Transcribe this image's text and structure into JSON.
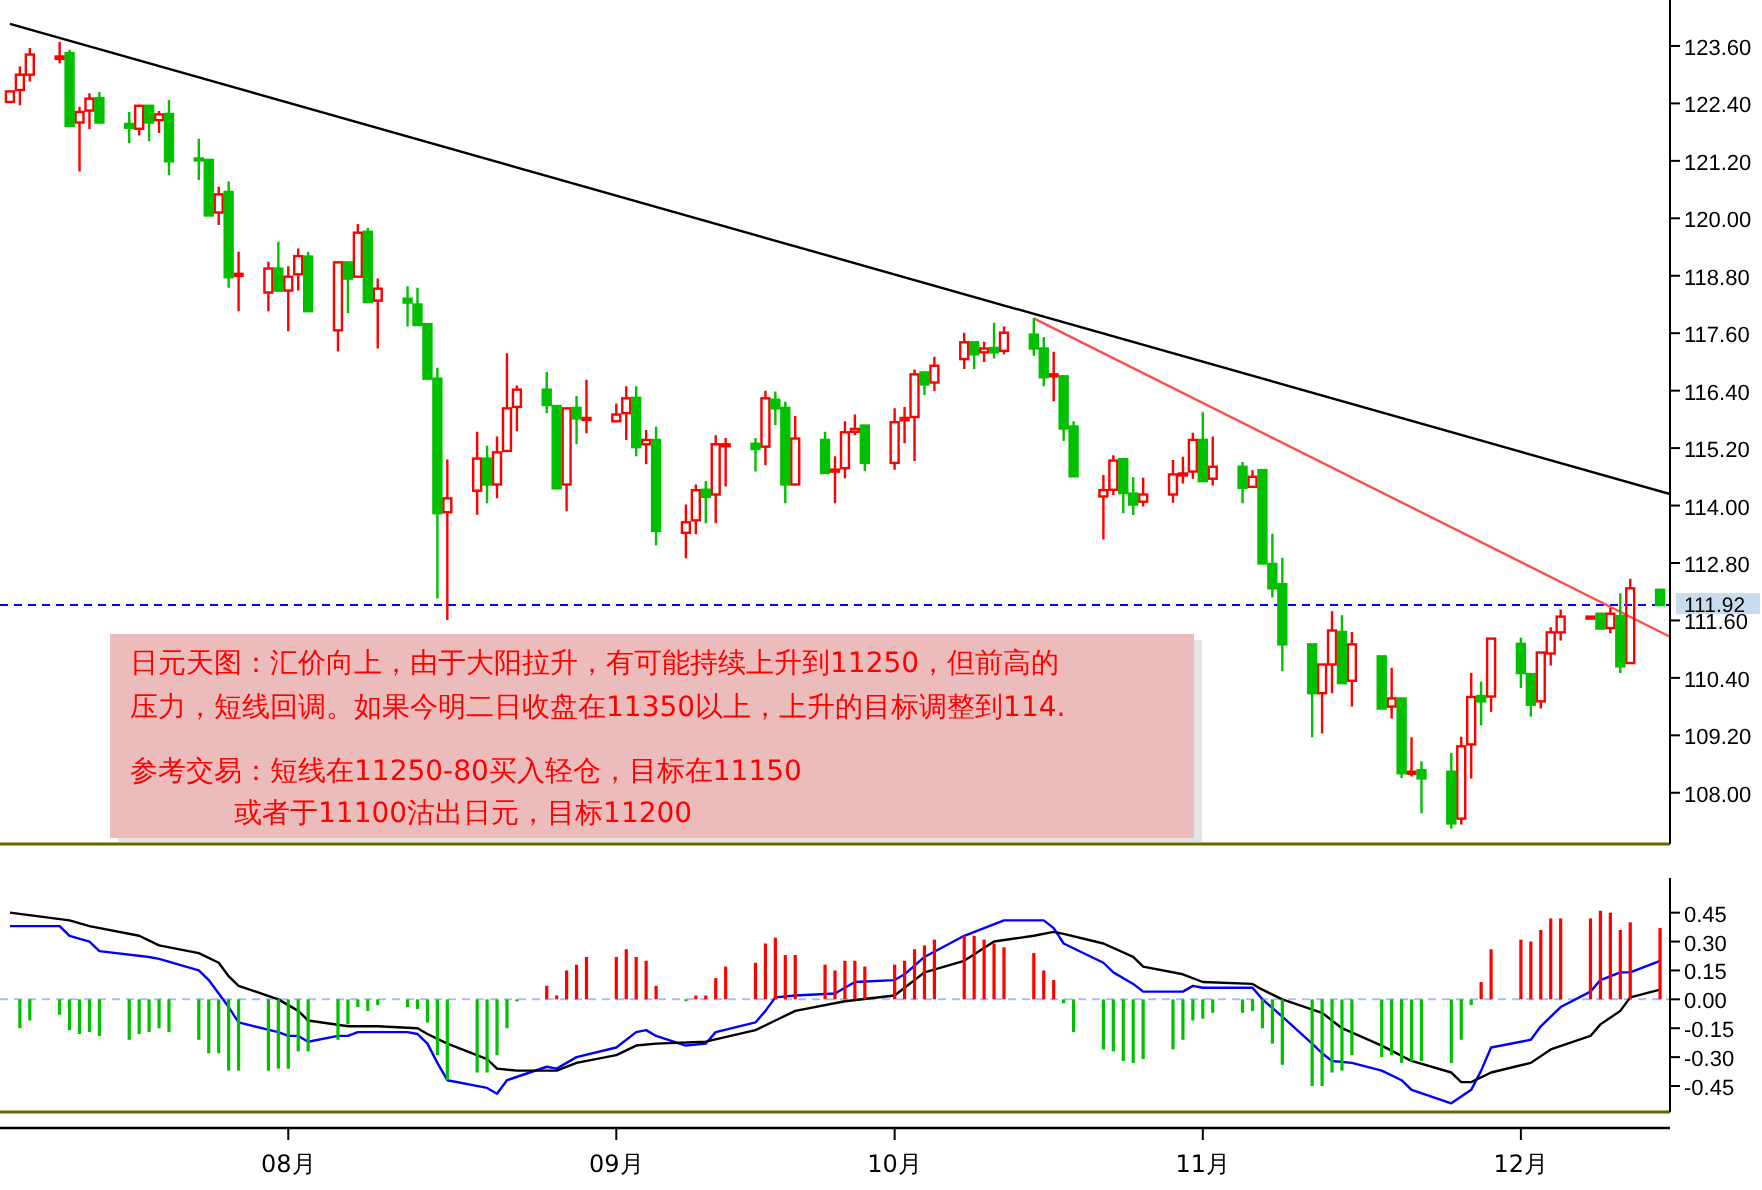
{
  "chart_data": [
    {
      "type": "candlestick",
      "xlim": [
        "--07-03",
        "--12-18"
      ],
      "ylim": [
        106.93,
        124.56
      ],
      "tick_labels": "y",
      "yticks": [
        {
          "value": 108.0,
          "label": "108.00"
        },
        {
          "value": 109.2,
          "label": "109.20"
        },
        {
          "value": 110.4,
          "label": "110.40"
        },
        {
          "value": 111.6,
          "label": "111.60"
        },
        {
          "value": 112.8,
          "label": "112.80"
        },
        {
          "value": 114.0,
          "label": "114.00"
        },
        {
          "value": 115.2,
          "label": "115.20"
        },
        {
          "value": 116.4,
          "label": "116.40"
        },
        {
          "value": 117.6,
          "label": "117.60"
        },
        {
          "value": 118.8,
          "label": "118.80"
        },
        {
          "value": 120.0,
          "label": "120.00"
        },
        {
          "value": 121.2,
          "label": "121.20"
        },
        {
          "value": 122.4,
          "label": "122.40"
        },
        {
          "value": 123.6,
          "label": "123.60"
        }
      ],
      "ref_lines": [
        {
          "axis": "y",
          "value": 111.92,
          "label": "111.92",
          "color": "#0000ff",
          "line_style": "dashed"
        }
      ],
      "annotations": [
        "日元天图：汇价向上，由于大阳拉升，有可能持续上升到11250，但前高的",
        "压力，短线回调。如果今明二日收盘在11350以上，上升的目标调整到114.",
        "参考交易：短线在11250-80买入轻仓，目标在11150",
        "或者于11100沽出日元，目标11200"
      ],
      "series": [
        {
          "color": "#ff0000",
          "x": [
            "--07-04",
            "--07-05",
            "--07-06",
            "--07-09",
            "--07-11",
            "--07-12",
            "--07-17",
            "--07-19",
            "--07-25",
            "--07-27",
            "--07-30",
            "--08-01",
            "--08-02",
            "--08-06",
            "--08-08",
            "--08-10",
            "--08-17",
            "--08-20",
            "--08-22",
            "--08-23",
            "--08-24",
            "--08-29",
            "--08-31",
            "--09-03",
            "--09-04",
            "--09-06",
            "--09-10",
            "--09-11",
            "--09-13",
            "--09-14",
            "--09-18",
            "--09-21",
            "--09-25",
            "--09-26",
            "--09-27",
            "--10-01",
            "--10-02",
            "--10-03",
            "--10-05",
            "--10-08",
            "--10-10",
            "--10-12",
            "--10-17",
            "--10-22",
            "--10-23",
            "--10-26",
            "--10-29",
            "--10-30",
            "--10-31",
            "--11-02",
            "--11-06",
            "--11-13",
            "--11-14",
            "--11-16",
            "--11-20",
            "--11-22",
            "--11-27",
            "--11-28",
            "--11-30",
            "--12-05",
            "--12-06",
            "--12-07",
            "--12-10",
            "--12-12",
            "--12-14"
          ],
          "ohlc": [
            [
              122.43,
              122.68,
              122.4,
              122.65
            ],
            [
              122.68,
              123.17,
              122.36,
              123.0
            ],
            [
              123.0,
              123.56,
              122.86,
              123.42
            ],
            [
              123.33,
              123.68,
              123.24,
              123.38
            ],
            [
              122.0,
              122.33,
              120.98,
              122.22
            ],
            [
              122.25,
              122.61,
              121.86,
              122.5
            ],
            [
              121.87,
              122.4,
              121.73,
              122.35
            ],
            [
              122.05,
              122.24,
              121.78,
              122.17
            ],
            [
              120.12,
              120.66,
              119.86,
              120.5
            ],
            [
              118.83,
              119.3,
              118.06,
              118.84
            ],
            [
              118.45,
              119.09,
              118.06,
              118.95
            ],
            [
              118.49,
              119.0,
              117.64,
              118.78
            ],
            [
              118.83,
              119.37,
              118.49,
              119.21
            ],
            [
              117.66,
              119.13,
              117.22,
              119.08
            ],
            [
              118.78,
              119.88,
              118.74,
              119.7
            ],
            [
              118.28,
              118.74,
              117.28,
              118.53
            ],
            [
              113.86,
              114.96,
              111.61,
              114.15
            ],
            [
              114.31,
              115.54,
              113.81,
              114.98
            ],
            [
              114.44,
              115.44,
              114.15,
              115.11
            ],
            [
              115.14,
              117.18,
              115.09,
              116.03
            ],
            [
              116.06,
              116.51,
              115.55,
              116.42
            ],
            [
              114.44,
              116.03,
              113.88,
              116.03
            ],
            [
              115.79,
              116.63,
              115.51,
              115.83
            ],
            [
              115.76,
              116.13,
              115.72,
              115.9
            ],
            [
              115.93,
              116.49,
              115.37,
              116.24
            ],
            [
              115.28,
              115.58,
              114.86,
              115.37
            ],
            [
              113.43,
              114.02,
              112.9,
              113.65
            ],
            [
              113.69,
              114.44,
              113.4,
              114.32
            ],
            [
              114.23,
              115.47,
              113.63,
              115.28
            ],
            [
              115.25,
              115.41,
              114.4,
              115.28
            ],
            [
              115.23,
              116.4,
              114.84,
              116.24
            ],
            [
              114.44,
              115.87,
              114.43,
              115.4
            ],
            [
              114.73,
              115.03,
              114.05,
              114.75
            ],
            [
              114.78,
              115.76,
              114.57,
              115.53
            ],
            [
              115.54,
              115.9,
              115.47,
              115.6
            ],
            [
              114.89,
              116.03,
              114.75,
              115.74
            ],
            [
              115.78,
              116.06,
              115.3,
              115.83
            ],
            [
              115.85,
              116.84,
              114.93,
              116.74
            ],
            [
              116.57,
              117.11,
              116.39,
              116.92
            ],
            [
              117.06,
              117.61,
              116.85,
              117.41
            ],
            [
              117.2,
              117.42,
              117.0,
              117.28
            ],
            [
              117.23,
              117.74,
              117.16,
              117.61
            ],
            [
              116.72,
              117.21,
              116.18,
              116.74
            ],
            [
              114.19,
              114.64,
              113.29,
              114.32
            ],
            [
              114.33,
              115.05,
              114.22,
              114.94
            ],
            [
              114.08,
              114.58,
              113.98,
              114.23
            ],
            [
              114.23,
              114.95,
              114.06,
              114.65
            ],
            [
              114.65,
              115.02,
              114.46,
              114.67
            ],
            [
              114.71,
              115.52,
              114.56,
              115.37
            ],
            [
              114.56,
              115.44,
              114.42,
              114.81
            ],
            [
              114.39,
              114.74,
              114.37,
              114.6
            ],
            [
              110.08,
              110.73,
              109.24,
              110.68
            ],
            [
              110.68,
              111.79,
              110.08,
              111.39
            ],
            [
              110.34,
              111.36,
              109.8,
              111.1
            ],
            [
              109.8,
              110.61,
              109.55,
              109.97
            ],
            [
              108.42,
              109.16,
              108.34,
              108.44
            ],
            [
              107.46,
              109.17,
              107.34,
              108.97
            ],
            [
              109.01,
              110.5,
              108.3,
              110.0
            ],
            [
              110.01,
              111.22,
              109.69,
              111.22
            ],
            [
              109.91,
              110.98,
              109.76,
              110.93
            ],
            [
              110.91,
              111.46,
              110.66,
              111.35
            ],
            [
              111.35,
              111.83,
              111.18,
              111.68
            ],
            [
              111.67,
              111.68,
              111.67,
              111.68
            ],
            [
              111.44,
              111.86,
              111.33,
              111.74
            ],
            [
              110.71,
              112.47,
              110.68,
              112.27
            ]
          ]
        },
        {
          "color": "#00c000",
          "x": [
            "--07-10",
            "--07-13",
            "--07-16",
            "--07-18",
            "--07-20",
            "--07-23",
            "--07-24",
            "--07-26",
            "--07-31",
            "--08-03",
            "--08-07",
            "--08-09",
            "--08-13",
            "--08-14",
            "--08-15",
            "--08-16",
            "--08-21",
            "--08-27",
            "--08-28",
            "--08-30",
            "--09-05",
            "--09-07",
            "--09-12",
            "--09-17",
            "--09-19",
            "--09-20",
            "--09-24",
            "--09-28",
            "--10-04",
            "--10-09",
            "--10-11",
            "--10-15",
            "--10-16",
            "--10-18",
            "--10-19",
            "--10-24",
            "--10-25",
            "--11-01",
            "--11-05",
            "--11-07",
            "--11-08",
            "--11-09",
            "--11-12",
            "--11-15",
            "--11-19",
            "--11-21",
            "--11-23",
            "--11-26",
            "--11-29",
            "--12-03",
            "--12-04",
            "--12-11",
            "--12-13",
            "--12-17"
          ],
          "ohlc": [
            [
              123.45,
              123.52,
              121.89,
              121.93
            ],
            [
              122.51,
              122.64,
              121.97,
              122.0
            ],
            [
              121.97,
              122.22,
              121.57,
              121.89
            ],
            [
              122.35,
              122.4,
              121.61,
              122.0
            ],
            [
              122.18,
              122.47,
              120.9,
              121.19
            ],
            [
              121.25,
              121.66,
              120.8,
              121.21
            ],
            [
              121.22,
              121.26,
              120.05,
              120.06
            ],
            [
              120.55,
              120.77,
              118.55,
              118.77
            ],
            [
              118.95,
              119.51,
              118.46,
              118.49
            ],
            [
              119.2,
              119.3,
              118.05,
              118.06
            ],
            [
              119.08,
              119.12,
              118.02,
              118.74
            ],
            [
              119.72,
              119.8,
              118.2,
              118.25
            ],
            [
              118.32,
              118.58,
              117.74,
              118.24
            ],
            [
              118.2,
              118.55,
              117.74,
              117.77
            ],
            [
              117.79,
              117.79,
              116.63,
              116.65
            ],
            [
              116.65,
              116.88,
              112.06,
              113.84
            ],
            [
              114.98,
              115.25,
              114.05,
              114.44
            ],
            [
              116.42,
              116.79,
              115.93,
              116.1
            ],
            [
              116.08,
              116.08,
              114.33,
              114.36
            ],
            [
              116.04,
              116.29,
              115.28,
              115.82
            ],
            [
              116.25,
              116.49,
              115.03,
              115.22
            ],
            [
              115.37,
              115.65,
              113.17,
              113.47
            ],
            [
              114.33,
              114.51,
              113.63,
              114.18
            ],
            [
              115.29,
              115.41,
              114.71,
              115.18
            ],
            [
              116.21,
              116.38,
              115.68,
              116.03
            ],
            [
              116.04,
              116.17,
              114.05,
              114.44
            ],
            [
              115.37,
              115.54,
              114.65,
              114.68
            ],
            [
              115.67,
              115.71,
              114.72,
              114.89
            ],
            [
              116.78,
              116.82,
              116.31,
              116.53
            ],
            [
              117.41,
              117.46,
              116.85,
              117.16
            ],
            [
              117.29,
              117.82,
              117.07,
              117.2
            ],
            [
              117.57,
              117.91,
              117.13,
              117.28
            ],
            [
              117.28,
              117.52,
              116.49,
              116.68
            ],
            [
              116.7,
              116.71,
              115.35,
              115.61
            ],
            [
              115.65,
              115.76,
              114.58,
              114.61
            ],
            [
              114.97,
              115.0,
              113.84,
              114.26
            ],
            [
              114.25,
              114.59,
              113.8,
              114.02
            ],
            [
              115.37,
              115.95,
              114.51,
              114.51
            ],
            [
              114.81,
              114.91,
              114.05,
              114.37
            ],
            [
              114.74,
              114.74,
              112.78,
              112.79
            ],
            [
              112.78,
              113.41,
              112.08,
              112.27
            ],
            [
              112.36,
              112.91,
              110.54,
              111.1
            ],
            [
              111.1,
              111.1,
              109.16,
              110.08
            ],
            [
              111.36,
              111.71,
              110.26,
              110.29
            ],
            [
              110.85,
              110.85,
              109.73,
              109.76
            ],
            [
              109.97,
              109.97,
              108.31,
              108.41
            ],
            [
              108.47,
              108.66,
              107.57,
              108.3
            ],
            [
              108.44,
              108.83,
              107.25,
              107.36
            ],
            [
              110.02,
              110.32,
              109.41,
              109.91
            ],
            [
              111.11,
              111.24,
              110.19,
              110.5
            ],
            [
              110.48,
              110.48,
              109.59,
              109.84
            ],
            [
              111.74,
              111.75,
              111.42,
              111.43
            ],
            [
              111.69,
              112.17,
              110.5,
              110.64
            ],
            [
              112.24,
              112.28,
              111.89,
              111.92
            ]
          ]
        },
        {
          "type": "line",
          "color": "#000000",
          "x": [
            "--07-04",
            "--12-18"
          ],
          "values": [
            124.06,
            114.24
          ]
        },
        {
          "type": "line",
          "color": "#ff5050",
          "x": [
            "--10-15",
            "--12-18"
          ],
          "values": [
            117.91,
            111.26
          ]
        }
      ]
    },
    {
      "type": "bar",
      "xlim": [
        "--07-03",
        "--12-18"
      ],
      "ylim": [
        -0.585,
        0.63
      ],
      "xticks": [
        {
          "value": "--08-01",
          "label": "08月"
        },
        {
          "value": "--09-03",
          "label": "09月"
        },
        {
          "value": "--10-01",
          "label": "10月"
        },
        {
          "value": "--11-01",
          "label": "11月"
        },
        {
          "value": "--12-03",
          "label": "12月"
        }
      ],
      "yticks": [
        {
          "value": -0.45,
          "label": "-0.45"
        },
        {
          "value": -0.3,
          "label": "-0.30"
        },
        {
          "value": -0.15,
          "label": "-0.15"
        },
        {
          "value": 0,
          "label": "0.00"
        },
        {
          "value": 0.15,
          "label": "0.15"
        },
        {
          "value": 0.3,
          "label": "0.30"
        },
        {
          "value": 0.45,
          "label": "0.45"
        }
      ],
      "ref_lines": [
        {
          "axis": "y",
          "value": 0,
          "color": "#a8c0f0",
          "line_style": "dashed"
        }
      ],
      "series": [
        {
          "color": "#ff0000",
          "x": [
            "--08-27",
            "--08-28",
            "--08-29",
            "--08-30",
            "--08-31",
            "--09-03",
            "--09-04",
            "--09-05",
            "--09-06",
            "--09-07",
            "--09-11",
            "--09-12",
            "--09-13",
            "--09-14",
            "--09-17",
            "--09-18",
            "--09-19",
            "--09-20",
            "--09-21",
            "--09-24",
            "--09-25",
            "--09-26",
            "--09-27",
            "--09-28",
            "--10-01",
            "--10-02",
            "--10-03",
            "--10-04",
            "--10-05",
            "--10-08",
            "--10-09",
            "--10-10",
            "--10-11",
            "--10-12",
            "--10-15",
            "--10-16",
            "--10-17",
            "--11-29",
            "--11-30",
            "--12-03",
            "--12-04",
            "--12-05",
            "--12-06",
            "--12-07",
            "--12-10",
            "--12-11",
            "--12-12",
            "--12-13",
            "--12-14",
            "--12-17"
          ],
          "values": [
            0.07,
            0.02,
            0.15,
            0.18,
            0.22,
            0.22,
            0.26,
            0.22,
            0.2,
            0.07,
            0.02,
            0.02,
            0.11,
            0.17,
            0.19,
            0.29,
            0.32,
            0.23,
            0.23,
            0.18,
            0.15,
            0.2,
            0.2,
            0.17,
            0.18,
            0.2,
            0.26,
            0.28,
            0.31,
            0.33,
            0.33,
            0.31,
            0.29,
            0.27,
            0.24,
            0.15,
            0.1,
            0.09,
            0.26,
            0.31,
            0.3,
            0.36,
            0.42,
            0.42,
            0.42,
            0.46,
            0.45,
            0.36,
            0.4,
            0.37
          ]
        },
        {
          "color": "#00c000",
          "x": [
            "--07-05",
            "--07-06",
            "--07-09",
            "--07-10",
            "--07-11",
            "--07-12",
            "--07-13",
            "--07-16",
            "--07-17",
            "--07-18",
            "--07-19",
            "--07-20",
            "--07-23",
            "--07-24",
            "--07-25",
            "--07-26",
            "--07-27",
            "--07-30",
            "--07-31",
            "--08-01",
            "--08-02",
            "--08-03",
            "--08-06",
            "--08-07",
            "--08-08",
            "--08-09",
            "--08-10",
            "--08-13",
            "--08-14",
            "--08-15",
            "--08-16",
            "--08-17",
            "--08-20",
            "--08-21",
            "--08-22",
            "--08-23",
            "--08-24",
            "--09-10",
            "--10-18",
            "--10-19",
            "--10-22",
            "--10-23",
            "--10-24",
            "--10-25",
            "--10-26",
            "--10-29",
            "--10-30",
            "--10-31",
            "--11-01",
            "--11-02",
            "--11-05",
            "--11-06",
            "--11-07",
            "--11-08",
            "--11-09",
            "--11-12",
            "--11-13",
            "--11-14",
            "--11-15",
            "--11-16",
            "--11-19",
            "--11-20",
            "--11-21",
            "--11-22",
            "--11-23",
            "--11-26",
            "--11-27",
            "--11-28"
          ],
          "values": [
            -0.15,
            -0.11,
            -0.08,
            -0.16,
            -0.18,
            -0.17,
            -0.19,
            -0.21,
            -0.18,
            -0.17,
            -0.15,
            -0.17,
            -0.21,
            -0.28,
            -0.28,
            -0.37,
            -0.37,
            -0.37,
            -0.36,
            -0.36,
            -0.27,
            -0.27,
            -0.21,
            -0.13,
            -0.04,
            -0.06,
            -0.03,
            -0.04,
            -0.05,
            -0.12,
            -0.29,
            -0.42,
            -0.38,
            -0.38,
            -0.29,
            -0.15,
            -0.01,
            -0.01,
            -0.02,
            -0.17,
            -0.26,
            -0.27,
            -0.32,
            -0.33,
            -0.31,
            -0.26,
            -0.21,
            -0.11,
            -0.1,
            -0.07,
            -0.07,
            -0.06,
            -0.15,
            -0.23,
            -0.34,
            -0.45,
            -0.45,
            -0.38,
            -0.37,
            -0.29,
            -0.3,
            -0.29,
            -0.33,
            -0.32,
            -0.32,
            -0.33,
            -0.21,
            -0.03
          ]
        },
        {
          "type": "line",
          "color": "#0000ff",
          "x": [
            "--07-04",
            "--07-09",
            "--07-10",
            "--07-12",
            "--07-13",
            "--07-18",
            "--07-19",
            "--07-23",
            "--07-24",
            "--07-25",
            "--07-26",
            "--07-27",
            "--07-31",
            "--08-01",
            "--08-02",
            "--08-03",
            "--08-06",
            "--08-07",
            "--08-08",
            "--08-13",
            "--08-14",
            "--08-15",
            "--08-16",
            "--08-17",
            "--08-21",
            "--08-22",
            "--08-23",
            "--08-27",
            "--08-28",
            "--08-30",
            "--09-03",
            "--09-05",
            "--09-06",
            "--09-07",
            "--09-10",
            "--09-12",
            "--09-13",
            "--09-17",
            "--09-18",
            "--09-19",
            "--09-21",
            "--09-25",
            "--09-27",
            "--10-01",
            "--10-02",
            "--10-04",
            "--10-08",
            "--10-10",
            "--10-12",
            "--10-16",
            "--10-17",
            "--10-18",
            "--10-22",
            "--10-23",
            "--10-25",
            "--10-26",
            "--10-30",
            "--10-31",
            "--11-01",
            "--11-06",
            "--11-07",
            "--11-09",
            "--11-12",
            "--11-13",
            "--11-14",
            "--11-16",
            "--11-19",
            "--11-21",
            "--11-22",
            "--11-26",
            "--11-28",
            "--11-29",
            "--11-30",
            "--12-04",
            "--12-05",
            "--12-07",
            "--12-10",
            "--12-11",
            "--12-13",
            "--12-14",
            "--12-17"
          ],
          "values": [
            0.38,
            0.38,
            0.33,
            0.3,
            0.25,
            0.22,
            0.21,
            0.15,
            0.1,
            0.03,
            -0.04,
            -0.12,
            -0.17,
            -0.19,
            -0.19,
            -0.22,
            -0.19,
            -0.19,
            -0.17,
            -0.17,
            -0.18,
            -0.23,
            -0.33,
            -0.42,
            -0.46,
            -0.49,
            -0.42,
            -0.35,
            -0.36,
            -0.3,
            -0.25,
            -0.17,
            -0.16,
            -0.19,
            -0.24,
            -0.23,
            -0.17,
            -0.12,
            -0.06,
            0.01,
            0.02,
            0.03,
            0.09,
            0.1,
            0.13,
            0.22,
            0.33,
            0.37,
            0.41,
            0.41,
            0.37,
            0.29,
            0.19,
            0.14,
            0.08,
            0.04,
            0.04,
            0.07,
            0.06,
            0.06,
            0.0,
            -0.09,
            -0.23,
            -0.28,
            -0.32,
            -0.33,
            -0.37,
            -0.42,
            -0.47,
            -0.54,
            -0.47,
            -0.37,
            -0.25,
            -0.21,
            -0.14,
            -0.04,
            0.04,
            0.1,
            0.14,
            0.14,
            0.2
          ]
        },
        {
          "type": "line",
          "color": "#000000",
          "x": [
            "--07-04",
            "--07-10",
            "--07-12",
            "--07-17",
            "--07-19",
            "--07-23",
            "--07-25",
            "--07-26",
            "--07-27",
            "--07-31",
            "--08-02",
            "--08-03",
            "--08-07",
            "--08-10",
            "--08-14",
            "--08-15",
            "--08-17",
            "--08-21",
            "--08-22",
            "--08-24",
            "--08-28",
            "--08-30",
            "--09-03",
            "--09-05",
            "--09-07",
            "--09-12",
            "--09-17",
            "--09-19",
            "--09-21",
            "--09-26",
            "--10-01",
            "--10-02",
            "--10-04",
            "--10-08",
            "--10-11",
            "--10-15",
            "--10-17",
            "--10-18",
            "--10-22",
            "--10-25",
            "--10-26",
            "--10-30",
            "--11-01",
            "--11-06",
            "--11-07",
            "--11-09",
            "--11-13",
            "--11-15",
            "--11-19",
            "--11-22",
            "--11-26",
            "--11-27",
            "--11-28",
            "--11-30",
            "--12-04",
            "--12-06",
            "--12-10",
            "--12-11",
            "--12-13",
            "--12-14",
            "--12-17"
          ],
          "values": [
            0.45,
            0.41,
            0.38,
            0.33,
            0.28,
            0.24,
            0.19,
            0.12,
            0.07,
            0.0,
            -0.06,
            -0.11,
            -0.14,
            -0.14,
            -0.15,
            -0.18,
            -0.23,
            -0.31,
            -0.36,
            -0.37,
            -0.37,
            -0.33,
            -0.29,
            -0.24,
            -0.23,
            -0.22,
            -0.16,
            -0.11,
            -0.06,
            -0.01,
            0.02,
            0.06,
            0.14,
            0.2,
            0.3,
            0.33,
            0.35,
            0.34,
            0.29,
            0.22,
            0.17,
            0.13,
            0.09,
            0.08,
            0.05,
            0.0,
            -0.07,
            -0.15,
            -0.24,
            -0.32,
            -0.38,
            -0.43,
            -0.43,
            -0.38,
            -0.33,
            -0.26,
            -0.19,
            -0.13,
            -0.06,
            0.01,
            0.05
          ]
        }
      ]
    }
  ]
}
